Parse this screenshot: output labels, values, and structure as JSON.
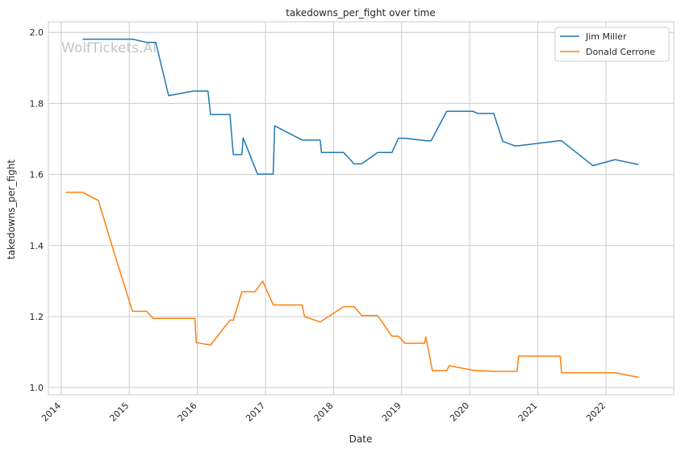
{
  "chart_data": {
    "type": "line",
    "title": "takedowns_per_fight over time",
    "xlabel": "Date",
    "ylabel": "takedowns_per_fight",
    "watermark": "WolfTickets.AI",
    "x_ticks": [
      "2014",
      "2015",
      "2016",
      "2017",
      "2018",
      "2019",
      "2020",
      "2021",
      "2022"
    ],
    "y_ticks": [
      "1.0",
      "1.2",
      "1.4",
      "1.6",
      "1.8",
      "2.0"
    ],
    "xlim": [
      "2013-10-24",
      "2022-12-31"
    ],
    "ylim": [
      0.98,
      2.03
    ],
    "grid": true,
    "legend_position": "top-right",
    "series": [
      {
        "name": "Jim Miller",
        "color": "#1f77b4",
        "points": [
          [
            "2014-04-26",
            1.981
          ],
          [
            "2015-01-18",
            1.981
          ],
          [
            "2015-04-04",
            1.972
          ],
          [
            "2015-05-23",
            1.972
          ],
          [
            "2015-07-31",
            1.822
          ],
          [
            "2015-12-10",
            1.835
          ],
          [
            "2016-02-27",
            1.835
          ],
          [
            "2016-03-12",
            1.769
          ],
          [
            "2016-06-24",
            1.769
          ],
          [
            "2016-07-12",
            1.656
          ],
          [
            "2016-08-27",
            1.656
          ],
          [
            "2016-09-03",
            1.703
          ],
          [
            "2016-11-19",
            1.601
          ],
          [
            "2017-02-11",
            1.601
          ],
          [
            "2017-02-19",
            1.737
          ],
          [
            "2017-07-16",
            1.697
          ],
          [
            "2017-10-21",
            1.697
          ],
          [
            "2017-10-28",
            1.662
          ],
          [
            "2018-02-24",
            1.662
          ],
          [
            "2018-04-21",
            1.63
          ],
          [
            "2018-06-01",
            1.63
          ],
          [
            "2018-08-25",
            1.662
          ],
          [
            "2018-11-10",
            1.662
          ],
          [
            "2018-12-15",
            1.702
          ],
          [
            "2019-01-19",
            1.702
          ],
          [
            "2019-05-18",
            1.695
          ],
          [
            "2019-06-08",
            1.695
          ],
          [
            "2019-08-31",
            1.778
          ],
          [
            "2020-01-18",
            1.778
          ],
          [
            "2020-02-15",
            1.772
          ],
          [
            "2020-05-09",
            1.772
          ],
          [
            "2020-06-27",
            1.693
          ],
          [
            "2020-08-29",
            1.681
          ],
          [
            "2020-09-19",
            1.681
          ],
          [
            "2021-04-24",
            1.695
          ],
          [
            "2021-05-08",
            1.695
          ],
          [
            "2021-10-23",
            1.625
          ],
          [
            "2022-02-19",
            1.642
          ],
          [
            "2022-06-25",
            1.628
          ]
        ]
      },
      {
        "name": "Donald Cerrone",
        "color": "#ff7f0e",
        "points": [
          [
            "2014-01-25",
            1.55
          ],
          [
            "2014-04-26",
            1.55
          ],
          [
            "2014-07-19",
            1.527
          ],
          [
            "2014-10-04",
            1.393
          ],
          [
            "2015-01-18",
            1.215
          ],
          [
            "2015-04-04",
            1.215
          ],
          [
            "2015-05-09",
            1.195
          ],
          [
            "2015-12-19",
            1.195
          ],
          [
            "2015-12-26",
            1.127
          ],
          [
            "2016-03-12",
            1.12
          ],
          [
            "2016-06-24",
            1.19
          ],
          [
            "2016-07-12",
            1.19
          ],
          [
            "2016-08-27",
            1.27
          ],
          [
            "2016-11-05",
            1.27
          ],
          [
            "2016-12-17",
            1.3
          ],
          [
            "2017-02-11",
            1.233
          ],
          [
            "2017-07-16",
            1.233
          ],
          [
            "2017-07-29",
            1.2
          ],
          [
            "2017-10-21",
            1.185
          ],
          [
            "2018-02-24",
            1.228
          ],
          [
            "2018-04-21",
            1.228
          ],
          [
            "2018-06-01",
            1.203
          ],
          [
            "2018-08-25",
            1.203
          ],
          [
            "2018-11-10",
            1.145
          ],
          [
            "2018-12-15",
            1.145
          ],
          [
            "2019-01-19",
            1.125
          ],
          [
            "2019-05-04",
            1.125
          ],
          [
            "2019-05-11",
            1.143
          ],
          [
            "2019-06-15",
            1.048
          ],
          [
            "2019-08-31",
            1.048
          ],
          [
            "2019-09-14",
            1.062
          ],
          [
            "2020-01-18",
            1.049
          ],
          [
            "2020-05-09",
            1.046
          ],
          [
            "2020-09-12",
            1.046
          ],
          [
            "2020-09-19",
            1.089
          ],
          [
            "2021-05-01",
            1.089
          ],
          [
            "2021-05-08",
            1.042
          ],
          [
            "2022-02-19",
            1.042
          ],
          [
            "2022-06-25",
            1.029
          ]
        ]
      }
    ]
  }
}
